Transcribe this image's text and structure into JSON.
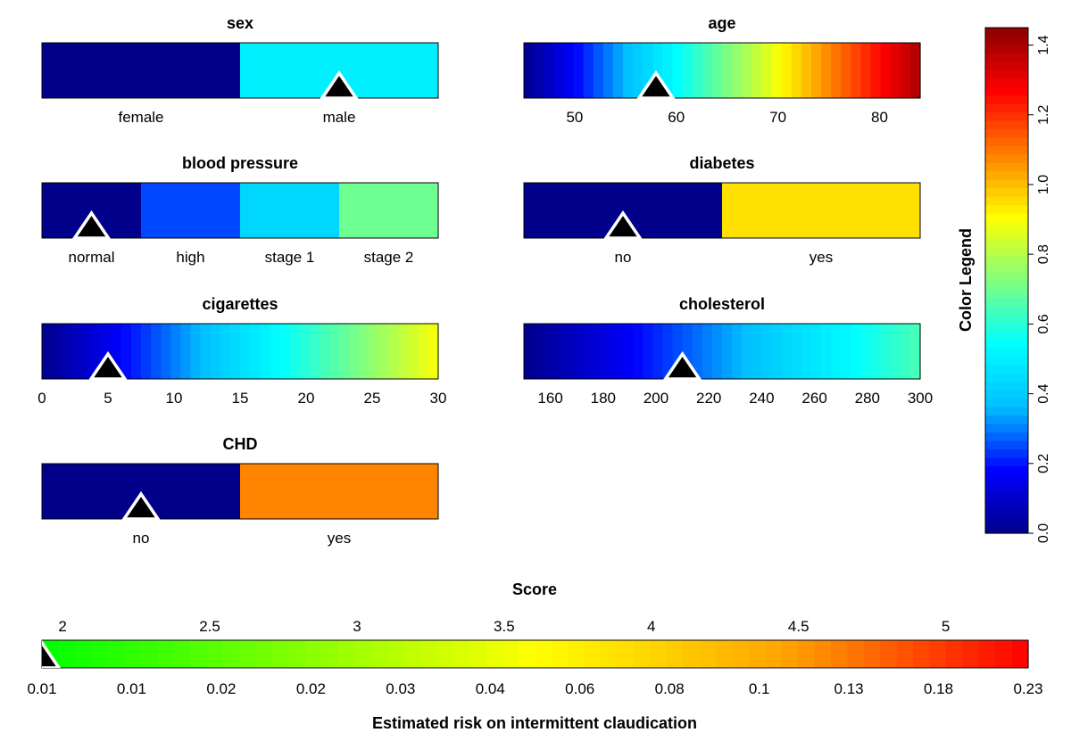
{
  "chart_data": {
    "type": "nomogram",
    "panels": [
      {
        "title": "sex",
        "kind": "categorical",
        "categories": [
          "female",
          "male"
        ],
        "values": [
          0.0,
          0.5
        ],
        "marker": 1
      },
      {
        "title": "age",
        "kind": "continuous",
        "range": [
          45,
          84
        ],
        "ticks": [
          50,
          60,
          70,
          80
        ],
        "value_range": [
          0.0,
          1.4
        ],
        "marker": 58
      },
      {
        "title": "blood pressure",
        "kind": "categorical",
        "categories": [
          "normal",
          "high",
          "stage 1",
          "stage 2"
        ],
        "values": [
          0.0,
          0.25,
          0.43,
          0.7
        ],
        "marker": 0
      },
      {
        "title": "diabetes",
        "kind": "categorical",
        "categories": [
          "no",
          "yes"
        ],
        "values": [
          0.0,
          0.95
        ],
        "marker": 0
      },
      {
        "title": "cigarettes",
        "kind": "continuous",
        "range": [
          0,
          30
        ],
        "ticks": [
          0,
          5,
          10,
          15,
          20,
          25,
          30
        ],
        "value_range": [
          0.0,
          0.9
        ],
        "marker": 5
      },
      {
        "title": "cholesterol",
        "kind": "continuous",
        "range": [
          150,
          300
        ],
        "ticks": [
          160,
          180,
          200,
          220,
          240,
          260,
          280,
          300
        ],
        "value_range": [
          0.0,
          0.65
        ],
        "marker": 210
      },
      {
        "title": "CHD",
        "kind": "categorical",
        "categories": [
          "no",
          "yes"
        ],
        "values": [
          0.0,
          1.08
        ],
        "marker": 0
      }
    ],
    "color_legend": {
      "title": "Color Legend",
      "range": [
        0.0,
        1.45
      ],
      "ticks": [
        "0.0",
        "0.2",
        "0.4",
        "0.6",
        "0.8",
        "1.0",
        "1.2",
        "1.4"
      ],
      "colors": [
        "#00008b",
        "#0000ff",
        "#00bfff",
        "#00ffff",
        "#7fff7f",
        "#ffff00",
        "#ff7f00",
        "#ff0000",
        "#8b0000"
      ]
    },
    "score": {
      "title": "Score",
      "range": [
        1.93,
        5.28
      ],
      "ticks": [
        "2",
        "2.5",
        "3",
        "3.5",
        "4",
        "4.5",
        "5"
      ],
      "risk_labels": [
        "0.01",
        "0.01",
        "0.02",
        "0.02",
        "0.03",
        "0.04",
        "0.06",
        "0.08",
        "0.1",
        "0.13",
        "0.18",
        "0.23"
      ],
      "risk_title": "Estimated risk on intermittent claudication",
      "colors": [
        "#00ff00",
        "#7fff00",
        "#ffff00",
        "#ffa500",
        "#ff0000"
      ],
      "marker": 1.93
    }
  }
}
